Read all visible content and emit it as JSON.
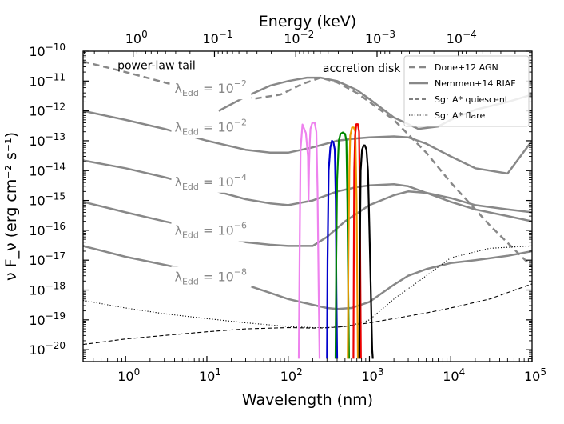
{
  "chart_data": {
    "type": "line",
    "title": "",
    "xlabel": "Wavelength (nm)",
    "ylabel": "ν F_ν (erg cm⁻² s⁻¹)",
    "top_xlabel": "Energy (keV)",
    "xscale": "log",
    "yscale": "log",
    "xlim": [
      0.3,
      100000
    ],
    "ylim": [
      4e-21,
      1e-10
    ],
    "x_ticks": [
      {
        "value": 1,
        "base": "10",
        "exp": "0"
      },
      {
        "value": 10,
        "base": "10",
        "exp": "1"
      },
      {
        "value": 100,
        "base": "10",
        "exp": "2"
      },
      {
        "value": 1000,
        "base": "10",
        "exp": "3"
      },
      {
        "value": 10000,
        "base": "10",
        "exp": "4"
      },
      {
        "value": 100000,
        "base": "10",
        "exp": "5"
      }
    ],
    "top_ticks": [
      {
        "value": 1.24,
        "base": "10",
        "exp": "0"
      },
      {
        "value": 12.4,
        "base": "10",
        "exp": "−1"
      },
      {
        "value": 124,
        "base": "10",
        "exp": "−2"
      },
      {
        "value": 1240,
        "base": "10",
        "exp": "−3"
      },
      {
        "value": 12400,
        "base": "10",
        "exp": "−4"
      }
    ],
    "y_ticks": [
      {
        "value": 1e-10,
        "base": "10",
        "exp": "−10"
      },
      {
        "value": 1e-11,
        "base": "10",
        "exp": "−11"
      },
      {
        "value": 1e-12,
        "base": "10",
        "exp": "−12"
      },
      {
        "value": 1e-13,
        "base": "10",
        "exp": "−13"
      },
      {
        "value": 1e-14,
        "base": "10",
        "exp": "−14"
      },
      {
        "value": 1e-15,
        "base": "10",
        "exp": "−15"
      },
      {
        "value": 1e-16,
        "base": "10",
        "exp": "−16"
      },
      {
        "value": 1e-17,
        "base": "10",
        "exp": "−17"
      },
      {
        "value": 1e-18,
        "base": "10",
        "exp": "−18"
      },
      {
        "value": 1e-19,
        "base": "10",
        "exp": "−19"
      },
      {
        "value": 1e-20,
        "base": "10",
        "exp": "−20"
      }
    ],
    "legend": {
      "placement": "top-right",
      "entries": [
        {
          "label": "Done+12 AGN",
          "style": "dashed-thick",
          "color": "#888888"
        },
        {
          "label": "Nemmen+14 RIAF",
          "style": "solid-thick",
          "color": "#888888"
        },
        {
          "label": "Sgr A* quiescent",
          "style": "dashed-thin",
          "color": "#000000"
        },
        {
          "label": "Sgr A* flare",
          "style": "dotted-thin",
          "color": "#000000"
        }
      ]
    },
    "annotations": [
      {
        "text": "power-law tail",
        "x": 2.4,
        "y": 2.5e-11
      },
      {
        "text": "accretion disk",
        "x": 800,
        "y": 2e-11
      }
    ],
    "lambda_labels": [
      {
        "prefix": "λ",
        "sub": "Edd",
        "eq": " = 10",
        "exp": "−2",
        "x": 4.0,
        "y": 4e-12
      },
      {
        "prefix": "λ",
        "sub": "Edd",
        "eq": " = 10",
        "exp": "−2",
        "x": 4.0,
        "y": 2e-13
      },
      {
        "prefix": "λ",
        "sub": "Edd",
        "eq": " = 10",
        "exp": "−4",
        "x": 4.0,
        "y": 3e-15
      },
      {
        "prefix": "λ",
        "sub": "Edd",
        "eq": " = 10",
        "exp": "−6",
        "x": 4.0,
        "y": 7e-17
      },
      {
        "prefix": "λ",
        "sub": "Edd",
        "eq": " = 10",
        "exp": "−8",
        "x": 4.0,
        "y": 2e-18
      }
    ],
    "series": [
      {
        "name": "Done+12 AGN",
        "style": "dashed-thick",
        "color": "#888888",
        "x": [
          0.3,
          1,
          3,
          8,
          15,
          20,
          40,
          80,
          150,
          250,
          400,
          700,
          1000,
          2000,
          5000,
          10000,
          30000,
          100000
        ],
        "y": [
          4.5e-11,
          2e-11,
          9e-12,
          4.5e-12,
          3.5e-12,
          3.2e-12,
          2.6e-12,
          3.5e-12,
          8e-12,
          1.3e-11,
          9e-12,
          4e-12,
          2e-12,
          5e-13,
          4e-14,
          4e-15,
          1.5e-16,
          6e-18
        ]
      },
      {
        "name": "RIAF λ=1e-2 (upper)",
        "style": "solid-thick",
        "color": "#888888",
        "x": [
          14,
          30,
          60,
          100,
          170,
          250,
          400,
          700,
          1000,
          2000,
          4000,
          7000,
          10000,
          20000,
          50000,
          100000
        ],
        "y": [
          1e-12,
          3e-12,
          7e-12,
          1e-11,
          1.3e-11,
          1.3e-11,
          1e-11,
          5e-12,
          2.5e-12,
          6e-13,
          2.5e-13,
          3e-13,
          5e-13,
          1.1e-12,
          2e-12,
          3.5e-12
        ]
      },
      {
        "name": "RIAF λ=1e-2 (lower)",
        "style": "solid-thick",
        "color": "#888888",
        "x": [
          0.3,
          1,
          3,
          10,
          30,
          60,
          100,
          200,
          400,
          700,
          1000,
          2000,
          3000,
          5000,
          10000,
          20000,
          50000,
          100000
        ],
        "y": [
          1e-12,
          5e-13,
          2.5e-13,
          1e-13,
          5e-14,
          4e-14,
          4e-14,
          6e-14,
          1e-13,
          1.2e-13,
          1.3e-13,
          1.4e-13,
          1.3e-13,
          8e-14,
          3e-14,
          1.2e-14,
          8e-15,
          1e-13
        ]
      },
      {
        "name": "RIAF λ=1e-4",
        "style": "solid-thick",
        "color": "#888888",
        "x": [
          0.3,
          1,
          3,
          10,
          30,
          60,
          100,
          200,
          400,
          700,
          1000,
          2000,
          3000,
          5000,
          10000,
          20000,
          50000,
          100000
        ],
        "y": [
          2.2e-14,
          1.2e-14,
          6e-15,
          2.5e-15,
          1.1e-15,
          8e-16,
          7e-16,
          1e-15,
          2e-15,
          2.8e-15,
          3.2e-15,
          3.5e-15,
          3e-15,
          1.8e-15,
          9e-16,
          5e-16,
          3e-16,
          2e-16
        ]
      },
      {
        "name": "RIAF λ=1e-6",
        "style": "solid-thick",
        "color": "#888888",
        "x": [
          0.3,
          1,
          3,
          10,
          17,
          30,
          60,
          100,
          200,
          300,
          500,
          1000,
          2000,
          3000,
          5000,
          10000,
          20000,
          50000,
          100000
        ],
        "y": [
          9e-16,
          4e-16,
          2e-16,
          1e-16,
          6e-17,
          4e-17,
          3.3e-17,
          3e-17,
          3e-17,
          6e-17,
          2e-16,
          7e-16,
          1.5e-15,
          2e-15,
          1.8e-15,
          1.2e-15,
          7e-16,
          5e-16,
          4e-16
        ]
      },
      {
        "name": "RIAF λ=1e-8",
        "style": "solid-thick",
        "color": "#888888",
        "x": [
          0.3,
          1,
          3,
          10,
          30,
          60,
          100,
          200,
          300,
          400,
          600,
          1000,
          2000,
          3000,
          5000,
          10000,
          20000,
          50000,
          100000
        ],
        "y": [
          3e-17,
          1.3e-17,
          7e-18,
          3.5e-18,
          1.5e-18,
          8e-19,
          5e-19,
          3.2e-19,
          2.5e-19,
          2.3e-19,
          2.5e-19,
          4e-19,
          1.5e-18,
          3e-18,
          5e-18,
          8e-18,
          1e-17,
          1.4e-17,
          2e-17
        ]
      },
      {
        "name": "Sgr A* quiescent",
        "style": "dashed-thin",
        "color": "#000000",
        "x": [
          0.3,
          1,
          3,
          10,
          30,
          100,
          200,
          300,
          500,
          1000,
          2000,
          5000,
          10000,
          30000,
          100000
        ],
        "y": [
          1.5e-20,
          2.3e-20,
          3e-20,
          4e-20,
          5e-20,
          5.5e-20,
          5.3e-20,
          5.4e-20,
          6e-20,
          8e-20,
          1.1e-19,
          1.7e-19,
          2.5e-19,
          5e-19,
          1.6e-18
        ]
      },
      {
        "name": "Sgr A* flare",
        "style": "dotted-thin",
        "color": "#000000",
        "x": [
          0.3,
          1,
          3,
          10,
          30,
          100,
          200,
          300,
          500,
          800,
          1000,
          2000,
          5000,
          10000,
          30000,
          100000
        ],
        "y": [
          4.5e-19,
          2.5e-19,
          1.6e-19,
          1.1e-19,
          8e-20,
          6e-20,
          5.5e-20,
          5.5e-20,
          6e-20,
          8e-20,
          1e-19,
          5e-19,
          3e-18,
          1.2e-17,
          2.5e-17,
          3e-17
        ]
      }
    ],
    "filters": [
      {
        "name": "violet",
        "color": "#ee82ee",
        "x": [
          135,
          138,
          142,
          150,
          165,
          175,
          178,
          181,
          184,
          188,
          198,
          212,
          222,
          230,
          237,
          243
        ],
        "y": [
          5e-21,
          1e-17,
          5e-14,
          3.5e-13,
          1.8e-13,
          3e-14,
          1e-15,
          1.5e-14,
          8e-14,
          2.5e-13,
          4e-13,
          4e-13,
          2e-13,
          2e-15,
          1e-18,
          5e-21
        ]
      },
      {
        "name": "blue",
        "color": "#0000cc",
        "x": [
          300,
          305,
          315,
          330,
          345,
          360,
          375,
          385,
          392,
          400
        ],
        "y": [
          5e-21,
          1e-17,
          1e-14,
          6e-14,
          1e-13,
          9e-14,
          5e-14,
          1e-15,
          1e-18,
          5e-21
        ]
      },
      {
        "name": "green",
        "color": "#008800",
        "x": [
          382,
          390,
          400,
          420,
          440,
          470,
          500,
          520,
          535,
          548,
          560
        ],
        "y": [
          5e-21,
          1e-17,
          5e-15,
          1e-13,
          1.7e-13,
          1.9e-13,
          1.7e-13,
          1e-13,
          1e-15,
          1e-18,
          5e-21
        ]
      },
      {
        "name": "orange",
        "color": "#ee9900",
        "x": [
          540,
          550,
          565,
          580,
          610,
          640,
          670,
          695,
          710,
          720
        ],
        "y": [
          5e-21,
          1e-17,
          1e-14,
          1.5e-13,
          2.8e-13,
          2.8e-13,
          2e-13,
          1e-15,
          1e-18,
          5e-21
        ]
      },
      {
        "name": "red",
        "color": "#ee0000",
        "x": [
          635,
          642,
          650,
          665,
          690,
          720,
          745,
          762,
          775,
          785
        ],
        "y": [
          5e-21,
          1e-17,
          1e-14,
          1.5e-13,
          3.6e-13,
          3.6e-13,
          2e-13,
          1e-15,
          1e-18,
          5e-21
        ]
      },
      {
        "name": "black",
        "color": "#000000",
        "x": [
          750,
          760,
          780,
          810,
          850,
          880,
          920,
          960,
          1000,
          1040,
          1080,
          1100
        ],
        "y": [
          5e-21,
          1e-17,
          1e-14,
          5e-14,
          7e-14,
          7e-14,
          5e-14,
          1e-14,
          1e-16,
          1e-18,
          1e-20,
          5e-21
        ]
      }
    ]
  }
}
